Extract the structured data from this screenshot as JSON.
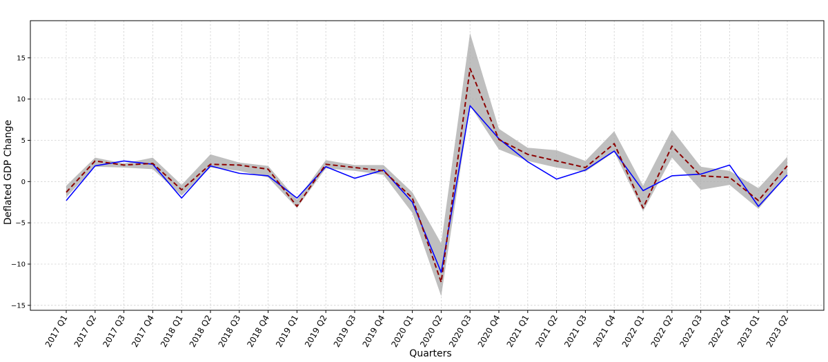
{
  "chart_data": {
    "type": "line",
    "xlabel": "Quarters",
    "ylabel": "Deflated GDP Change",
    "ylim": [
      -15.6,
      19.5
    ],
    "yticks": [
      -15,
      -10,
      -5,
      0,
      5,
      10,
      15
    ],
    "grid": true,
    "categories": [
      "2017 Q1",
      "2017 Q2",
      "2017 Q3",
      "2017 Q4",
      "2018 Q1",
      "2018 Q2",
      "2018 Q3",
      "2018 Q4",
      "2019 Q1",
      "2019 Q2",
      "2019 Q3",
      "2019 Q4",
      "2020 Q1",
      "2020 Q2",
      "2020 Q3",
      "2020 Q4",
      "2021 Q1",
      "2021 Q2",
      "2021 Q3",
      "2021 Q4",
      "2022 Q1",
      "2022 Q2",
      "2022 Q3",
      "2022 Q4",
      "2023 Q1",
      "2023 Q2"
    ],
    "band": {
      "color": "#a9a9a9",
      "upper": [
        -0.5,
        2.9,
        2.2,
        2.9,
        -0.4,
        3.3,
        2.3,
        1.9,
        -2.2,
        2.6,
        2.0,
        2.0,
        -1.3,
        -7.5,
        18.0,
        6.4,
        4.1,
        3.8,
        2.5,
        6.1,
        -0.5,
        6.3,
        1.8,
        1.3,
        -0.8,
        3.0
      ],
      "lower": [
        -1.9,
        1.8,
        1.7,
        1.5,
        -1.7,
        1.7,
        1.3,
        0.5,
        -3.2,
        1.6,
        1.3,
        0.8,
        -3.8,
        -13.9,
        9.2,
        3.9,
        2.5,
        1.7,
        1.2,
        3.6,
        -3.6,
        2.9,
        -1.0,
        -0.4,
        -3.3,
        0.8
      ]
    },
    "series": [
      {
        "color": "#0000ff",
        "style": "solid",
        "values": [
          -2.3,
          1.9,
          2.5,
          2.1,
          -2.0,
          1.9,
          1.0,
          0.7,
          -2.0,
          1.8,
          0.4,
          1.4,
          -2.5,
          -11.0,
          9.2,
          5.2,
          2.4,
          0.3,
          1.4,
          3.7,
          -1.1,
          0.7,
          0.9,
          2.0,
          -3.0,
          0.8
        ]
      },
      {
        "color": "#8b0000",
        "style": "dashed",
        "values": [
          -1.3,
          2.5,
          2.0,
          2.2,
          -1.0,
          2.1,
          2.0,
          1.5,
          -3.0,
          2.1,
          1.7,
          1.3,
          -2.0,
          -12.2,
          13.7,
          5.1,
          3.3,
          2.5,
          1.7,
          4.6,
          -3.2,
          4.3,
          0.7,
          0.5,
          -2.3,
          1.9
        ]
      }
    ]
  }
}
